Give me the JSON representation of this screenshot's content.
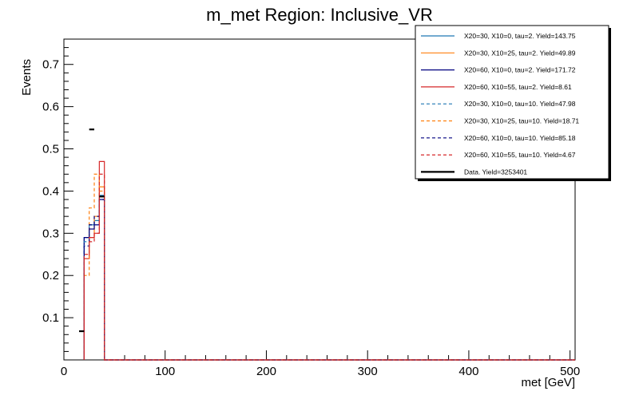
{
  "chart_data": {
    "type": "line",
    "render_style": "step-histogram",
    "title": "m_met Region: Inclusive_VR",
    "xlabel": "met [GeV]",
    "ylabel": "Events",
    "xlim": [
      0,
      505
    ],
    "ylim": [
      0,
      0.76
    ],
    "x_ticks": [
      0,
      100,
      200,
      300,
      400,
      500
    ],
    "x_tick_labels": [
      "0",
      "100",
      "200",
      "300",
      "400",
      "500"
    ],
    "y_ticks": [
      0.1,
      0.2,
      0.3,
      0.4,
      0.5,
      0.6,
      0.7
    ],
    "y_tick_labels": [
      "0.1",
      "0.2",
      "0.3",
      "0.4",
      "0.5",
      "0.6",
      "0.7"
    ],
    "bin_edges": [
      20,
      25,
      30,
      35,
      40
    ],
    "grid": false,
    "legend_position": "top-right",
    "series": [
      {
        "name": "X20=30, X10=0, tau=2. Yield=143.75",
        "color": "#1f77b4",
        "dash": "solid",
        "values": [
          0.29,
          0.32,
          0.33,
          0.39
        ]
      },
      {
        "name": "X20=30, X10=25, tau=2. Yield=49.89",
        "color": "#ff7f0e",
        "dash": "solid",
        "values": [
          0.24,
          0.29,
          0.34,
          0.41
        ]
      },
      {
        "name": "X20=60, X10=0, tau=2. Yield=171.72",
        "color": "#000080",
        "dash": "solid",
        "values": [
          0.29,
          0.31,
          0.32,
          0.38
        ]
      },
      {
        "name": "X20=60, X10=55, tau=2. Yield=8.61",
        "color": "#d62728",
        "dash": "solid",
        "values": [
          0.24,
          0.29,
          0.3,
          0.47
        ]
      },
      {
        "name": "X20=30, X10=0, tau=10. Yield=47.98",
        "color": "#1f77b4",
        "dash": "dashed",
        "values": [
          0.28,
          0.32,
          0.33,
          0.38
        ]
      },
      {
        "name": "X20=30, X10=25, tau=10. Yield=18.71",
        "color": "#ff7f0e",
        "dash": "dashed",
        "values": [
          0.2,
          0.36,
          0.44,
          0.4
        ]
      },
      {
        "name": "X20=60, X10=0, tau=10. Yield=85.18",
        "color": "#000080",
        "dash": "dashed",
        "values": [
          0.27,
          0.32,
          0.34,
          0.38
        ]
      },
      {
        "name": "X20=60, X10=55, tau=10. Yield=4.67",
        "color": "#d62728",
        "dash": "dashed",
        "values": [
          0.25,
          0.28,
          0.3,
          0.44
        ]
      }
    ],
    "data_series": {
      "name": "Data. Yield=3253401",
      "color": "#000000",
      "points": [
        {
          "x": 17.5,
          "y": 0.068
        },
        {
          "x": 27.5,
          "y": 0.546
        },
        {
          "x": 37.5,
          "y": 0.387
        }
      ],
      "bin_half_width": 2.5
    }
  }
}
